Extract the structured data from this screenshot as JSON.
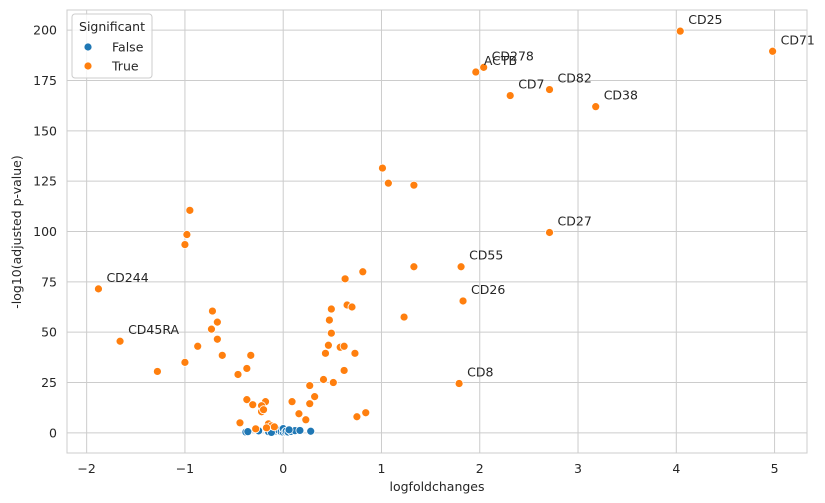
{
  "chart_data": {
    "type": "scatter",
    "xlabel": "logfoldchanges",
    "ylabel": "-log10(adjusted p-value)",
    "xlim": [
      -2.2,
      5.33
    ],
    "ylim": [
      -10,
      210
    ],
    "xticks": [
      -2,
      -1,
      0,
      1,
      2,
      3,
      4,
      5
    ],
    "yticks": [
      0,
      25,
      50,
      75,
      100,
      125,
      150,
      175,
      200
    ],
    "grid": true,
    "legend": {
      "title": "Significant",
      "placement": "top-left",
      "entries": [
        {
          "label": "False",
          "color": "#1f77b4"
        },
        {
          "label": "True",
          "color": "#ff7f0e"
        }
      ]
    },
    "series": [
      {
        "name": "False",
        "color": "#1f77b4",
        "points": [
          [
            -0.38,
            0.4
          ],
          [
            -0.36,
            0.6
          ],
          [
            -0.25,
            1.0
          ],
          [
            -0.08,
            0.9
          ],
          [
            -0.05,
            1.4
          ],
          [
            -0.02,
            0.5
          ],
          [
            0.0,
            0.3
          ],
          [
            0.0,
            2.1
          ],
          [
            0.02,
            0.5
          ],
          [
            0.03,
            0.9
          ],
          [
            0.05,
            0.4
          ],
          [
            0.08,
            0.7
          ],
          [
            0.12,
            1.1
          ],
          [
            0.17,
            1.2
          ],
          [
            0.28,
            0.8
          ],
          [
            -0.15,
            0.6
          ],
          [
            0.06,
            1.5
          ],
          [
            -0.12,
            0.2
          ]
        ]
      },
      {
        "name": "True",
        "color": "#ff7f0e",
        "points": [
          [
            4.04,
            199.5
          ],
          [
            4.98,
            189.5
          ],
          [
            2.04,
            181.5
          ],
          [
            1.96,
            179.2
          ],
          [
            2.31,
            167.5
          ],
          [
            2.71,
            170.5
          ],
          [
            3.18,
            162.0
          ],
          [
            1.01,
            131.5
          ],
          [
            1.07,
            124.0
          ],
          [
            1.33,
            123.0
          ],
          [
            -0.95,
            110.5
          ],
          [
            -0.98,
            98.5
          ],
          [
            -1.0,
            93.5
          ],
          [
            2.71,
            99.5
          ],
          [
            1.33,
            82.5
          ],
          [
            1.81,
            82.5
          ],
          [
            0.81,
            80.0
          ],
          [
            0.63,
            76.5
          ],
          [
            1.83,
            65.5
          ],
          [
            -1.88,
            71.5
          ],
          [
            0.65,
            63.5
          ],
          [
            0.7,
            62.5
          ],
          [
            0.49,
            61.5
          ],
          [
            -0.72,
            60.5
          ],
          [
            1.23,
            57.5
          ],
          [
            0.47,
            56.0
          ],
          [
            -0.67,
            55.0
          ],
          [
            -0.73,
            51.5
          ],
          [
            0.49,
            49.5
          ],
          [
            -0.67,
            46.5
          ],
          [
            -1.66,
            45.5
          ],
          [
            -0.87,
            43.0
          ],
          [
            0.46,
            43.5
          ],
          [
            0.58,
            42.5
          ],
          [
            0.62,
            43.0
          ],
          [
            -0.33,
            38.5
          ],
          [
            -0.62,
            38.5
          ],
          [
            0.43,
            39.5
          ],
          [
            0.73,
            39.5
          ],
          [
            -1.0,
            35.0
          ],
          [
            -0.37,
            32.0
          ],
          [
            0.62,
            31.0
          ],
          [
            -1.28,
            30.5
          ],
          [
            -0.46,
            29.0
          ],
          [
            0.41,
            26.5
          ],
          [
            0.51,
            25.0
          ],
          [
            1.79,
            24.5
          ],
          [
            0.27,
            23.5
          ],
          [
            0.32,
            18.0
          ],
          [
            -0.37,
            16.5
          ],
          [
            -0.18,
            15.5
          ],
          [
            0.09,
            15.5
          ],
          [
            -0.31,
            14.0
          ],
          [
            -0.22,
            13.5
          ],
          [
            0.27,
            14.5
          ],
          [
            -0.22,
            10.5
          ],
          [
            0.16,
            9.5
          ],
          [
            0.84,
            10.0
          ],
          [
            0.75,
            8.0
          ],
          [
            0.23,
            6.5
          ],
          [
            -0.44,
            5.0
          ],
          [
            -0.15,
            4.5
          ],
          [
            -0.12,
            3.5
          ],
          [
            -0.09,
            3.0
          ],
          [
            -0.17,
            2.5
          ],
          [
            -0.28,
            2.0
          ],
          [
            -0.2,
            11.5
          ]
        ]
      }
    ],
    "annotations": [
      {
        "text": "CD25",
        "x": 4.04,
        "y": 199.5
      },
      {
        "text": "CD71",
        "x": 4.98,
        "y": 189.5
      },
      {
        "text": "CD278",
        "x": 2.04,
        "y": 181.5
      },
      {
        "text": "ACTB",
        "x": 1.96,
        "y": 179.2
      },
      {
        "text": "CD7",
        "x": 2.31,
        "y": 167.5
      },
      {
        "text": "CD82",
        "x": 2.71,
        "y": 170.5
      },
      {
        "text": "CD38",
        "x": 3.18,
        "y": 162.0
      },
      {
        "text": "CD27",
        "x": 2.71,
        "y": 99.5
      },
      {
        "text": "CD55",
        "x": 1.81,
        "y": 82.5
      },
      {
        "text": "CD26",
        "x": 1.83,
        "y": 65.5
      },
      {
        "text": "CD244",
        "x": -1.88,
        "y": 71.5
      },
      {
        "text": "CD45RA",
        "x": -1.66,
        "y": 45.5
      },
      {
        "text": "CD8",
        "x": 1.79,
        "y": 24.5
      }
    ]
  }
}
